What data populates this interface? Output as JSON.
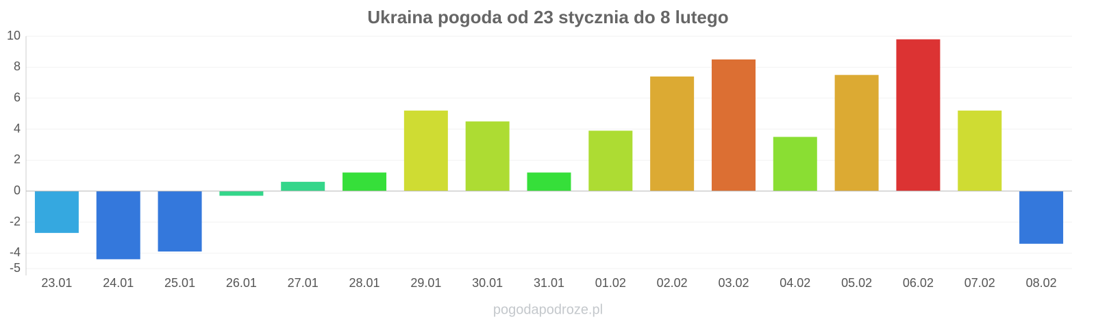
{
  "chart_data": {
    "type": "bar",
    "title": "Ukraina pogoda od 23 stycznia do 8 lutego",
    "categories": [
      "23.01",
      "24.01",
      "25.01",
      "26.01",
      "27.01",
      "28.01",
      "29.01",
      "30.01",
      "31.01",
      "01.02",
      "02.02",
      "03.02",
      "04.02",
      "05.02",
      "06.02",
      "07.02",
      "08.02"
    ],
    "values": [
      -2.7,
      -4.4,
      -3.9,
      -0.3,
      0.6,
      1.2,
      5.2,
      4.5,
      1.2,
      3.9,
      7.4,
      8.5,
      3.5,
      7.5,
      9.8,
      5.2,
      -3.4
    ],
    "colors": [
      "#35a8e0",
      "#3478dc",
      "#3478dc",
      "#34d68a",
      "#34d68a",
      "#36df3a",
      "#cfdc33",
      "#addc33",
      "#36df3a",
      "#addc33",
      "#dcaa33",
      "#dc6f33",
      "#8ade33",
      "#dcaa33",
      "#dc3333",
      "#cfdc33",
      "#3478dc"
    ],
    "ylim": [
      -5,
      10
    ],
    "yticks": [
      -5,
      -4,
      -2,
      0,
      2,
      4,
      6,
      8,
      10
    ],
    "grid": true,
    "source": "pogodapodroze.pl"
  }
}
